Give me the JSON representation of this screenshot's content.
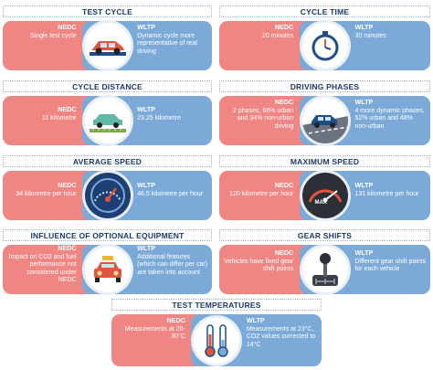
{
  "panels": {
    "test_cycle": {
      "title": "TEST CYCLE",
      "nedc_label": "NEDC",
      "nedc_text": "Single test cycle",
      "wltp_label": "WLTP",
      "wltp_text": "Dynamic cycle more representative of real driving",
      "icon": "car-on-dyno-icon"
    },
    "cycle_time": {
      "title": "CYCLE TIME",
      "nedc_label": "NEDC",
      "nedc_text": "20 minutes",
      "wltp_label": "WLTP",
      "wltp_text": "30 minutes",
      "icon": "stopwatch-icon"
    },
    "cycle_distance": {
      "title": "CYCLE DISTANCE",
      "nedc_label": "NEDC",
      "nedc_text": "11 kilometre",
      "wltp_label": "WLTP",
      "wltp_text": "23.25 kilometre",
      "icon": "car-ruler-icon"
    },
    "driving_phases": {
      "title": "DRIVING PHASES",
      "nedc_label": "NEDC",
      "nedc_text": "2 phases, 66% urban and 34% non-urban driving",
      "wltp_label": "WLTP",
      "wltp_text": "4 more dynamic phases, 52% urban and 48% non-urban",
      "icon": "car-road-icon"
    },
    "average_speed": {
      "title": "AVERAGE SPEED",
      "nedc_label": "NEDC",
      "nedc_text": "34 kilometre per hour",
      "wltp_label": "WLTP",
      "wltp_text": "46.5 kilometre per hour",
      "icon": "speedometer-icon"
    },
    "maximum_speed": {
      "title": "MAXIMUM SPEED",
      "nedc_label": "NEDC",
      "nedc_text": "120 kilometre per hour",
      "wltp_label": "WLTP",
      "wltp_text": "131 kilometre per hour",
      "icon": "max-gauge-icon",
      "gauge_text": "MAX"
    },
    "optional_equipment": {
      "title": "INFLUENCE OF OPTIONAL EQUIPMENT",
      "nedc_label": "NEDC",
      "nedc_text": "Impact on CO2 and fuel performance not considered under NEDC",
      "wltp_label": "WLTP",
      "wltp_text": "Additional features (which can differ per car) are taken into account",
      "icon": "car-front-icon"
    },
    "gear_shifts": {
      "title": "GEAR SHIFTS",
      "nedc_label": "NEDC",
      "nedc_text": "Vehicles have fixed gear shift points",
      "wltp_label": "WLTP",
      "wltp_text": "Different gear shift points for each vehicle",
      "icon": "gear-stick-icon"
    },
    "test_temperatures": {
      "title": "TEST TEMPERATURES",
      "nedc_label": "NEDC",
      "nedc_text": "Measurements at 20-30°C",
      "wltp_label": "WLTP",
      "wltp_text": "Measurements at 23°C, CO2 values corrected to 14°C",
      "icon": "thermometers-icon"
    }
  },
  "colors": {
    "nedc": "#f08683",
    "wltp": "#7baad8",
    "title_text": "#1b3a6b"
  }
}
